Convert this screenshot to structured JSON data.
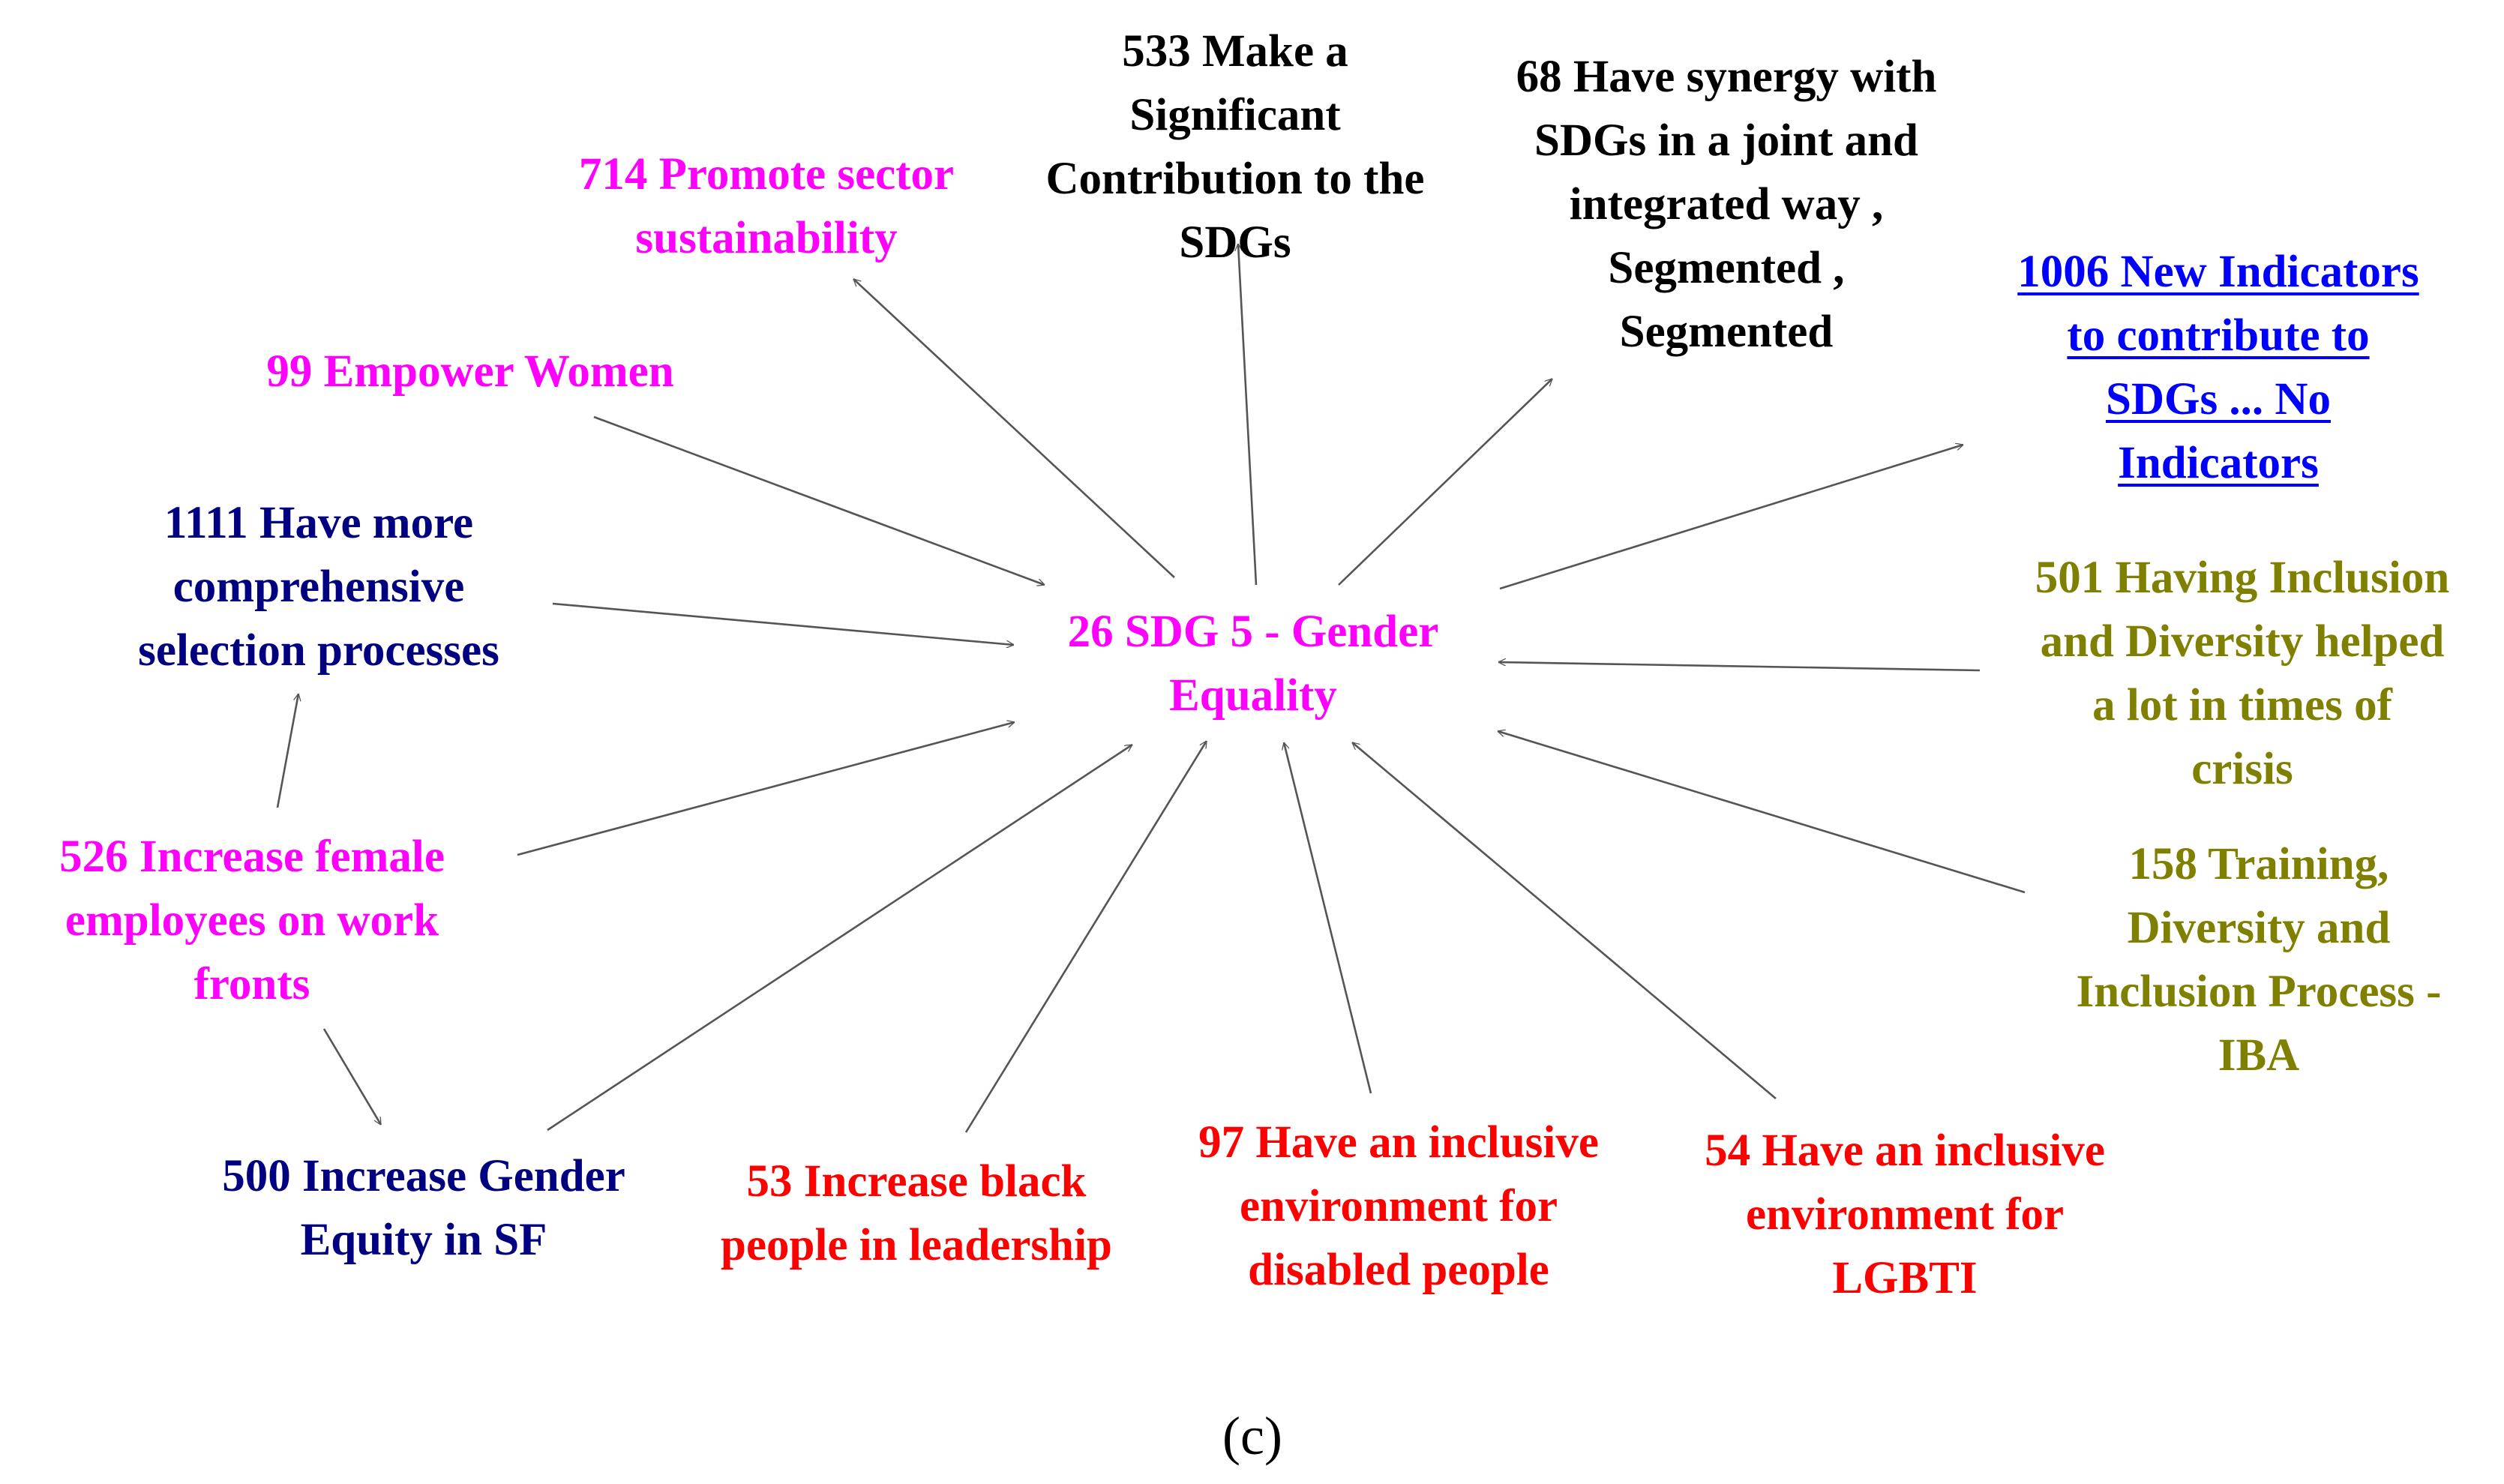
{
  "colors": {
    "magenta": "#ff00ff",
    "black": "#000000",
    "navy": "#000080",
    "blue": "#0000ff",
    "olive": "#808000",
    "red": "#ff0000",
    "arrow": "#555555"
  },
  "center": {
    "id": "26",
    "lines": [
      "26 SDG 5 - Gender",
      "Equality"
    ],
    "color": "magenta"
  },
  "nodes": [
    {
      "id": "714",
      "lines": [
        "714 Promote sector",
        "sustainability"
      ],
      "color": "magenta"
    },
    {
      "id": "533",
      "lines": [
        "533 Make a",
        "Significant",
        "Contribution to the",
        "SDGs"
      ],
      "color": "black"
    },
    {
      "id": "68",
      "lines": [
        "68 Have synergy with",
        "SDGs in a joint and",
        "integrated way ,",
        "Segmented ,",
        "Segmented"
      ],
      "color": "black"
    },
    {
      "id": "1006",
      "lines": [
        "1006 New Indicators",
        "to contribute to",
        "SDGs ... No",
        "Indicators"
      ],
      "color": "blue",
      "link": true
    },
    {
      "id": "99",
      "lines": [
        "99 Empower Women"
      ],
      "color": "magenta"
    },
    {
      "id": "1111",
      "lines": [
        "1111 Have more",
        "comprehensive",
        "selection processes"
      ],
      "color": "navy"
    },
    {
      "id": "501",
      "lines": [
        "501 Having Inclusion",
        "and Diversity helped",
        "a lot in times of",
        "crisis"
      ],
      "color": "olive"
    },
    {
      "id": "526",
      "lines": [
        "526 Increase female",
        "employees on work",
        "fronts"
      ],
      "color": "magenta"
    },
    {
      "id": "158",
      "lines": [
        "158 Training,",
        "Diversity and",
        "Inclusion Process -",
        "IBA"
      ],
      "color": "olive"
    },
    {
      "id": "500",
      "lines": [
        "500 Increase Gender",
        "Equity in SF"
      ],
      "color": "navy"
    },
    {
      "id": "53",
      "lines": [
        "53 Increase black",
        "people in leadership"
      ],
      "color": "red"
    },
    {
      "id": "97",
      "lines": [
        "97 Have an inclusive",
        "environment for",
        "disabled people"
      ],
      "color": "red"
    },
    {
      "id": "54",
      "lines": [
        "54 Have an inclusive",
        "environment for",
        "LGBTI"
      ],
      "color": "red"
    }
  ],
  "edges": [
    {
      "from": "26",
      "to": "714"
    },
    {
      "from": "26",
      "to": "533"
    },
    {
      "from": "26",
      "to": "68"
    },
    {
      "from": "26",
      "to": "1006"
    },
    {
      "from": "99",
      "to": "26"
    },
    {
      "from": "1111",
      "to": "26"
    },
    {
      "from": "501",
      "to": "26"
    },
    {
      "from": "526",
      "to": "26"
    },
    {
      "from": "526",
      "to": "1111"
    },
    {
      "from": "526",
      "to": "500"
    },
    {
      "from": "158",
      "to": "26"
    },
    {
      "from": "500",
      "to": "26"
    },
    {
      "from": "53",
      "to": "26"
    },
    {
      "from": "97",
      "to": "26"
    },
    {
      "from": "54",
      "to": "26"
    }
  ],
  "caption": "(c)"
}
